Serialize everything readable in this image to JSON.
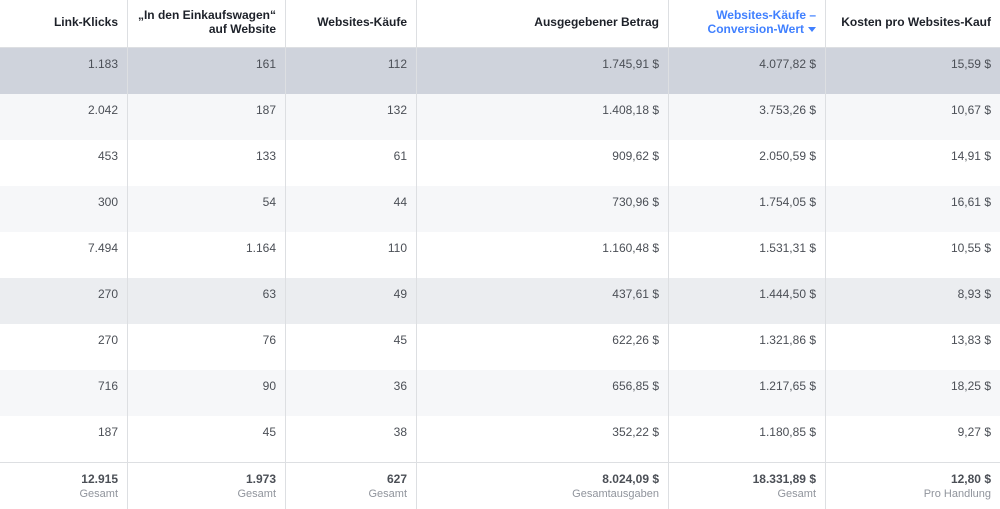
{
  "columns": [
    {
      "label_lines": [
        "Link-Klicks"
      ]
    },
    {
      "label_lines": [
        "„In den Einkaufswagen“",
        "auf Website"
      ]
    },
    {
      "label_lines": [
        "Websites-Käufe"
      ]
    },
    {
      "label_lines": [
        "Ausgegebener Betrag"
      ]
    },
    {
      "label_lines": [
        "Websites-Käufe –",
        "Conversion-Wert"
      ],
      "sorted": true
    },
    {
      "label_lines": [
        "Kosten pro Websites-Kauf"
      ]
    }
  ],
  "rows": [
    [
      "1.183",
      "161",
      "112",
      "1.745,91 $",
      "4.077,82 $",
      "15,59 $"
    ],
    [
      "2.042",
      "187",
      "132",
      "1.408,18 $",
      "3.753,26 $",
      "10,67 $"
    ],
    [
      "453",
      "133",
      "61",
      "909,62 $",
      "2.050,59 $",
      "14,91 $"
    ],
    [
      "300",
      "54",
      "44",
      "730,96 $",
      "1.754,05 $",
      "16,61 $"
    ],
    [
      "7.494",
      "1.164",
      "110",
      "1.160,48 $",
      "1.531,31 $",
      "10,55 $"
    ],
    [
      "270",
      "63",
      "49",
      "437,61 $",
      "1.444,50 $",
      "8,93 $"
    ],
    [
      "270",
      "76",
      "45",
      "622,26 $",
      "1.321,86 $",
      "13,83 $"
    ],
    [
      "716",
      "90",
      "36",
      "656,85 $",
      "1.217,65 $",
      "18,25 $"
    ],
    [
      "187",
      "45",
      "38",
      "352,22 $",
      "1.180,85 $",
      "9,27 $"
    ]
  ],
  "totals": [
    {
      "value": "12.915",
      "sub": "Gesamt"
    },
    {
      "value": "1.973",
      "sub": "Gesamt"
    },
    {
      "value": "627",
      "sub": "Gesamt"
    },
    {
      "value": "8.024,09 $",
      "sub": "Gesamtausgaben"
    },
    {
      "value": "18.331,89 $",
      "sub": "Gesamt"
    },
    {
      "value": "12,80 $",
      "sub": "Pro Handlung"
    }
  ],
  "colors": {
    "accent": "#4080ff",
    "selected_row": "#cfd3dc",
    "border": "#dddfe2"
  }
}
